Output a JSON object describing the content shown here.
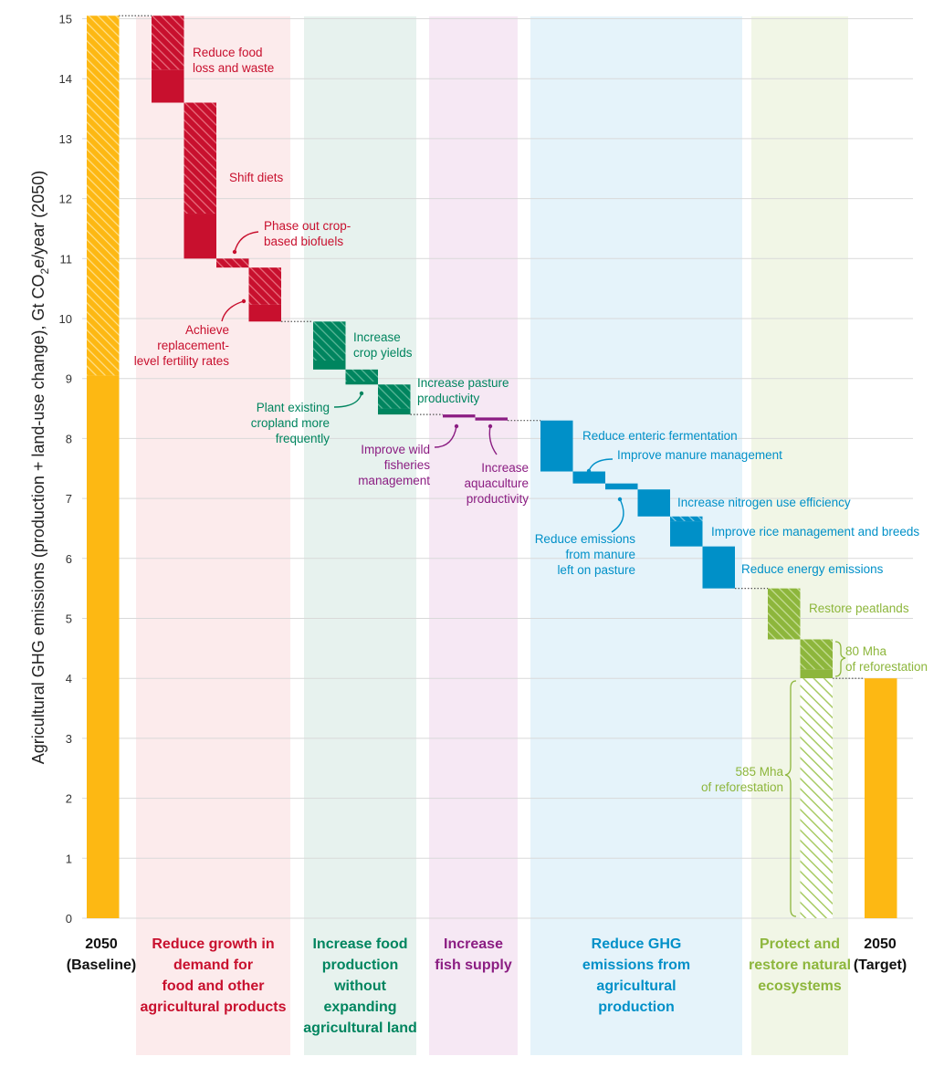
{
  "chart_data": {
    "type": "bar",
    "subtype": "waterfall",
    "ylabel": "Agricultural GHG emissions (production + land-use change), Gt CO2e/year (2050)",
    "ylabel_parts": [
      "Agricultural GHG emissions (production + land-use change), Gt CO",
      "2",
      "e/year (2050)"
    ],
    "ylim": [
      0,
      15
    ],
    "yticks": [
      "0",
      "1",
      "2",
      "3",
      "4",
      "5",
      "6",
      "7",
      "8",
      "9",
      "10",
      "11",
      "12",
      "13",
      "14",
      "15"
    ],
    "grid": true,
    "colors": {
      "baseline": "#FDB813",
      "demand": "#C8102E",
      "production": "#00855F",
      "fish": "#8B1D82",
      "emissions": "#0090C8",
      "ecosystems": "#8DB63C"
    },
    "baseline": {
      "label_line1": "2050",
      "label_line2": "(Baseline)",
      "value": 15.05,
      "hatched_from": 9.05
    },
    "target": {
      "label_line1": "2050",
      "label_line2": "(Target)",
      "value": 4.0
    },
    "groups": [
      {
        "key": "demand",
        "label": [
          "Reduce growth in",
          "demand for",
          "food and other",
          "agricultural products"
        ]
      },
      {
        "key": "production",
        "label": [
          "Increase food",
          "production",
          "without",
          "expanding",
          "agricultural land"
        ]
      },
      {
        "key": "fish",
        "label": [
          "Increase",
          "fish supply"
        ]
      },
      {
        "key": "emissions",
        "label": [
          "Reduce GHG",
          "emissions from",
          "agricultural",
          "production"
        ]
      },
      {
        "key": "ecosystems",
        "label": [
          "Protect and",
          "restore natural",
          "ecosystems"
        ]
      }
    ],
    "steps": [
      {
        "group": "demand",
        "label": [
          "Reduce food",
          "loss and waste"
        ],
        "from": 15.05,
        "to": 13.6,
        "solid": 0.55
      },
      {
        "group": "demand",
        "label": [
          "Shift diets"
        ],
        "from": 13.6,
        "to": 11.0,
        "solid": 0.75
      },
      {
        "group": "demand",
        "label": [
          "Phase out crop-",
          "based biofuels"
        ],
        "from": 11.0,
        "to": 10.85,
        "solid": 0
      },
      {
        "group": "demand",
        "label": [
          "Achieve",
          "replacement-",
          "level fertility rates"
        ],
        "from": 10.85,
        "to": 9.95,
        "solid": 0.28
      },
      {
        "group": "production",
        "label": [
          "Increase",
          "crop yields"
        ],
        "from": 9.95,
        "to": 9.15,
        "solid": 0.15
      },
      {
        "group": "production",
        "label": [
          "Plant existing",
          "cropland more",
          "frequently"
        ],
        "from": 9.15,
        "to": 8.9,
        "solid": 0.05
      },
      {
        "group": "production",
        "label": [
          "Increase pasture",
          "productivity"
        ],
        "from": 8.9,
        "to": 8.4,
        "solid": 0.1
      },
      {
        "group": "fish",
        "label": [
          "Improve wild",
          "fisheries",
          "management"
        ],
        "from": 8.4,
        "to": 8.35,
        "solid": 0.05
      },
      {
        "group": "fish",
        "label": [
          "Increase",
          "aquaculture",
          "productivity"
        ],
        "from": 8.35,
        "to": 8.3,
        "solid": 0.05
      },
      {
        "group": "emissions",
        "label": [
          "Reduce enteric fermentation"
        ],
        "from": 8.3,
        "to": 7.45,
        "solid": 0.85
      },
      {
        "group": "emissions",
        "label": [
          "Improve manure management"
        ],
        "from": 7.45,
        "to": 7.25,
        "solid": 0.2
      },
      {
        "group": "emissions",
        "label": [
          "Reduce emissions",
          "from manure",
          "left on pasture"
        ],
        "from": 7.25,
        "to": 7.15,
        "solid": 0.1
      },
      {
        "group": "emissions",
        "label": [
          "Increase nitrogen use efficiency"
        ],
        "from": 7.15,
        "to": 6.7,
        "solid": 0.45
      },
      {
        "group": "emissions",
        "label": [
          "Improve rice management and breeds"
        ],
        "from": 6.7,
        "to": 6.2,
        "solid": 0.42
      },
      {
        "group": "emissions",
        "label": [
          "Reduce energy emissions"
        ],
        "from": 6.2,
        "to": 5.5,
        "solid": 0.7
      },
      {
        "group": "ecosystems",
        "label": [
          "Restore peatlands"
        ],
        "from": 5.5,
        "to": 4.65,
        "solid": 0.0
      },
      {
        "group": "ecosystems",
        "label": [
          "80 Mha",
          "of reforestation"
        ],
        "from": 4.65,
        "to": 4.0,
        "solid": 0.15
      },
      {
        "group": "ecosystems",
        "label": [
          "585 Mha",
          "of reforestation"
        ],
        "from": 4.0,
        "to": 0.0,
        "solid": 0
      }
    ]
  }
}
